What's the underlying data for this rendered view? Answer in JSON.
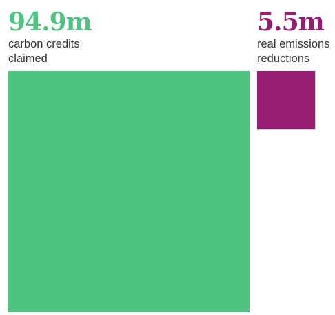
{
  "chart_data": {
    "type": "area",
    "title": "",
    "unit": "m",
    "series": [
      {
        "value": 94.9,
        "value_label": "94.9m",
        "label_lines": [
          "carbon credits",
          "claimed"
        ],
        "color": "#4fc382"
      },
      {
        "value": 5.5,
        "value_label": "5.5m",
        "label_lines": [
          "real emissions",
          "reductions"
        ],
        "color": "#971d73"
      }
    ]
  }
}
